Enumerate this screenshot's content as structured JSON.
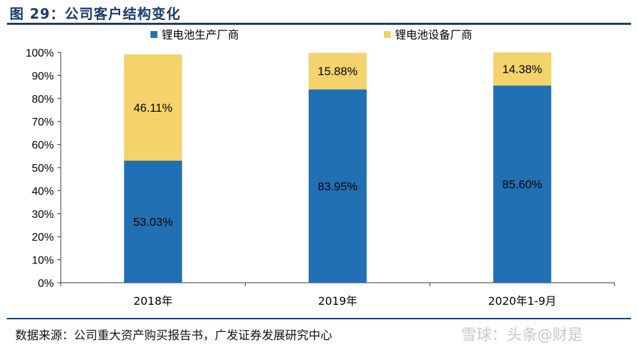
{
  "figure": {
    "title": "图 29：公司客户结构变化",
    "source": "数据来源：公司重大资产购买报告书，广发证券发展研究中心",
    "watermark": "雪球：头条@财是"
  },
  "colors": {
    "title": "#1a3a6b",
    "battery_makers": "#2170b4",
    "equipment_makers": "#f4d26c"
  },
  "chart_data": {
    "type": "bar",
    "stacked": true,
    "categories": [
      "2018年",
      "2019年",
      "2020年1-9月"
    ],
    "series": [
      {
        "name": "锂电池生产厂商",
        "values": [
          53.03,
          83.95,
          85.6
        ],
        "labels": [
          "53.03%",
          "83.95%",
          "85.60%"
        ]
      },
      {
        "name": "锂电池设备厂商",
        "values": [
          46.11,
          15.88,
          14.38
        ],
        "labels": [
          "46.11%",
          "15.88%",
          "14.38%"
        ]
      }
    ],
    "ylim": [
      0,
      100
    ],
    "yticks": [
      "0%",
      "10%",
      "20%",
      "30%",
      "40%",
      "50%",
      "60%",
      "70%",
      "80%",
      "90%",
      "100%"
    ],
    "xlabel": "",
    "ylabel": "",
    "legend_position": "top",
    "grid": false
  }
}
